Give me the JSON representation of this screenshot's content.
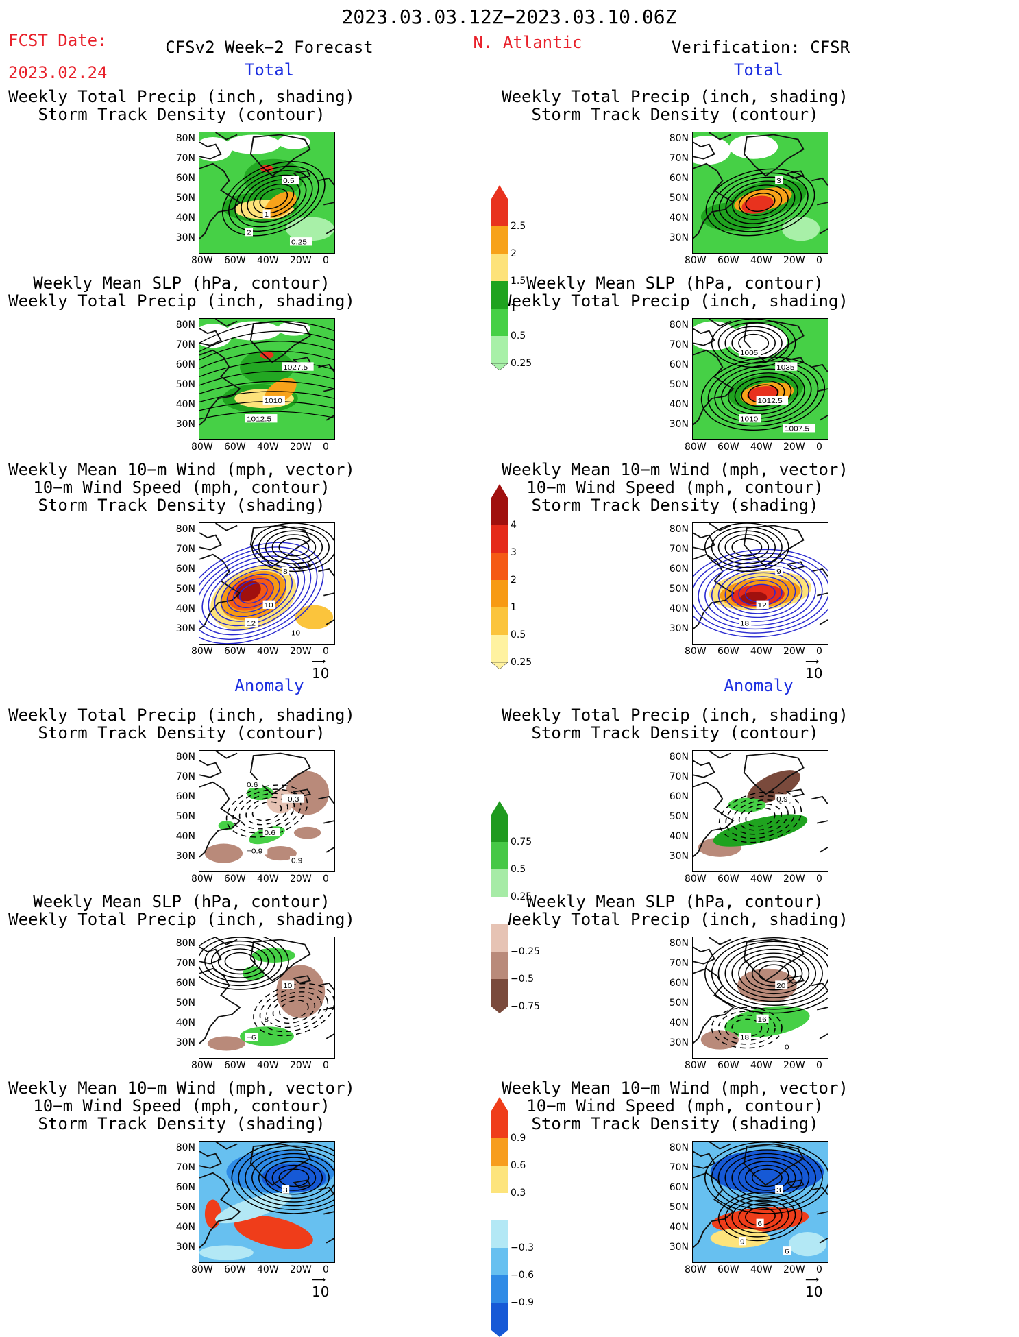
{
  "header": {
    "date_range": "2023.03.03.12Z−2023.03.10.06Z",
    "fcst_label": "FCST Date:",
    "fcst_date": "2023.02.24",
    "left_title": "CFSv2 Week−2 Forecast",
    "region": "N. Atlantic",
    "right_title": "Verification: CFSR"
  },
  "sections": {
    "total": "Total",
    "anomaly": "Anomaly"
  },
  "titles": {
    "precip_track": [
      "Weekly Total Precip (inch, shading)",
      "Storm Track Density (contour)"
    ],
    "slp_precip": [
      "Weekly Mean SLP (hPa, contour)",
      "Weekly Total Precip (inch, shading)"
    ],
    "wind_track": [
      "Weekly Mean 10−m Wind (mph, vector)",
      "10−m Wind Speed (mph, contour)",
      "Storm Track Density (shading)"
    ]
  },
  "axes": {
    "lat": [
      "80N",
      "70N",
      "60N",
      "50N",
      "40N",
      "30N"
    ],
    "lon": [
      "80W",
      "60W",
      "40W",
      "20W",
      "0"
    ]
  },
  "colorbars": {
    "precip_total": {
      "labels": [
        "2.5",
        "2",
        "1.5",
        "1",
        "0.5",
        "0.25"
      ],
      "colors": [
        "#e8321e",
        "#f7a21a",
        "#fde27a",
        "#1fa31f",
        "#46d046",
        "#a8f0a8"
      ]
    },
    "track_total": {
      "labels": [
        "4",
        "3",
        "2",
        "1",
        "0.5",
        "0.25"
      ],
      "colors": [
        "#a0100e",
        "#e52a1a",
        "#f55a15",
        "#f79a14",
        "#fbc43c",
        "#fff2a0"
      ]
    },
    "precip_anom": {
      "labels": [
        "0.75",
        "0.5",
        "0.25",
        "−0.25",
        "−0.5",
        "−0.75"
      ],
      "colors": [
        "#1f9a1f",
        "#46c846",
        "#a6eba6",
        "#ffffff",
        "#e6c3b4",
        "#b98a7a",
        "#7a4a3c"
      ]
    },
    "track_anom": {
      "labels": [
        "0.9",
        "0.6",
        "0.3",
        "−0.3",
        "−0.6",
        "−0.9"
      ],
      "colors": [
        "#ef3d1a",
        "#f79d1e",
        "#fde47c",
        "#ffffff",
        "#b3e8f5",
        "#67c0f0",
        "#2f8be6",
        "#1659d6"
      ]
    }
  },
  "vector_ref": "10",
  "contour_labels": {
    "fc_total_precip": [
      "0.5",
      "1",
      "2",
      "0.25"
    ],
    "ob_total_precip": [
      "3"
    ],
    "fc_total_slp": [
      "1027.5",
      "1010",
      "1012.5"
    ],
    "ob_total_slp": [
      "1035",
      "1012.5",
      "1010",
      "1007.5",
      "1005"
    ],
    "fc_total_wind": [
      "8",
      "10",
      "12",
      "10"
    ],
    "ob_total_wind": [
      "9",
      "12",
      "18"
    ],
    "fc_anom_precip": [
      "−0.3",
      "0.6",
      "−0.9",
      "0.9",
      "0.6"
    ],
    "ob_anom_precip": [
      "0.9"
    ],
    "fc_anom_slp": [
      "10",
      "8",
      "−6"
    ],
    "ob_anom_slp": [
      "20",
      "16",
      "18",
      "0"
    ],
    "fc_anom_wind": [
      "3"
    ],
    "ob_anom_wind": [
      "3",
      "6",
      "9",
      "6"
    ]
  },
  "colors": {
    "red": "#e8202a",
    "blue": "#1c2fe0"
  }
}
